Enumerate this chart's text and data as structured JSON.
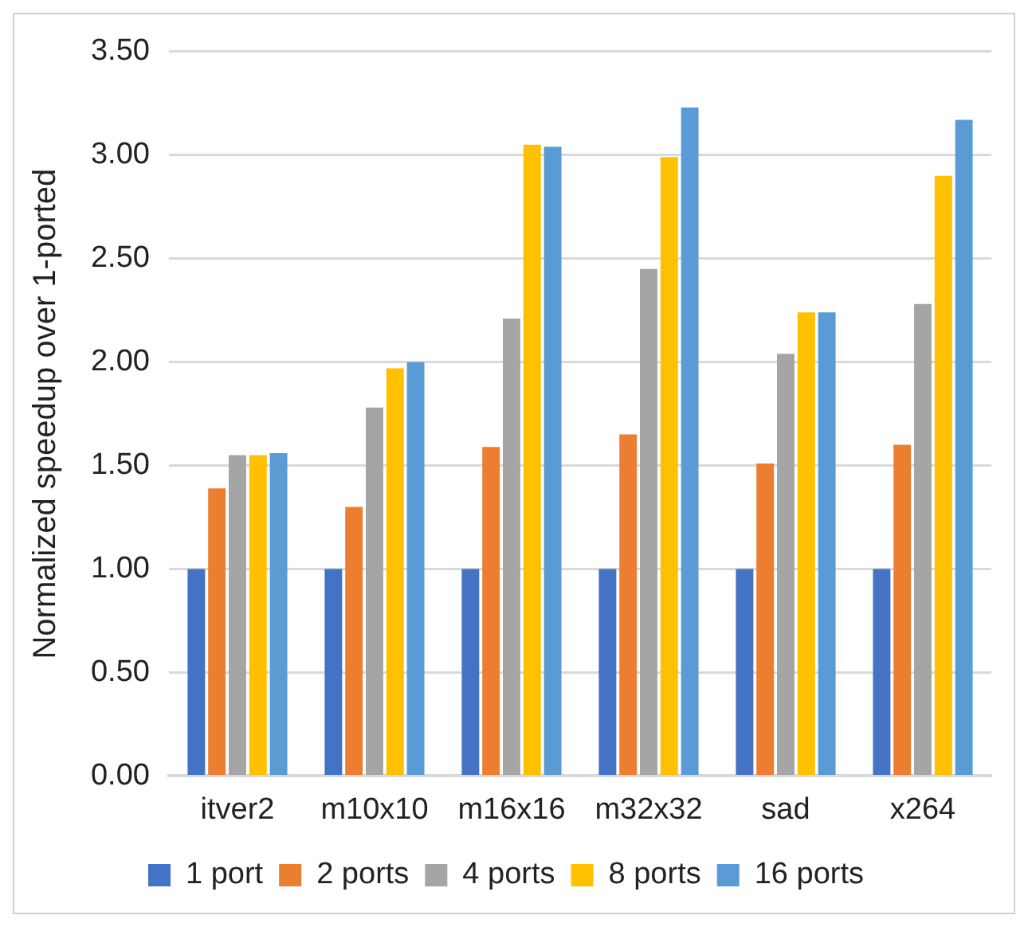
{
  "chart_data": {
    "type": "bar",
    "ylabel": "Normalized speedup over 1-ported",
    "categories": [
      "itver2",
      "m10x10",
      "m16x16",
      "m32x32",
      "sad",
      "x264"
    ],
    "series": [
      {
        "name": "1 port",
        "color": "#4472c4",
        "values": [
          1.0,
          1.0,
          1.0,
          1.0,
          1.0,
          1.0
        ]
      },
      {
        "name": "2 ports",
        "color": "#ed7d31",
        "values": [
          1.39,
          1.3,
          1.59,
          1.65,
          1.51,
          1.6
        ]
      },
      {
        "name": "4 ports",
        "color": "#a5a5a5",
        "values": [
          1.55,
          1.78,
          2.21,
          2.45,
          2.04,
          2.28
        ]
      },
      {
        "name": "8 ports",
        "color": "#ffc000",
        "values": [
          1.55,
          1.97,
          3.05,
          2.99,
          2.24,
          2.9
        ]
      },
      {
        "name": "16 ports",
        "color": "#5b9bd5",
        "values": [
          1.56,
          2.0,
          3.04,
          3.23,
          2.24,
          3.17
        ]
      }
    ],
    "ylim": [
      0,
      3.5
    ],
    "yticks": [
      {
        "value": 0,
        "label": "0.00"
      },
      {
        "value": 0.5,
        "label": "0.50"
      },
      {
        "value": 1,
        "label": "1.00"
      },
      {
        "value": 1.5,
        "label": "1.50"
      },
      {
        "value": 2,
        "label": "2.00"
      },
      {
        "value": 2.5,
        "label": "2.50"
      },
      {
        "value": 3,
        "label": "3.00"
      },
      {
        "value": 3.5,
        "label": "3.50"
      }
    ],
    "grid": "y",
    "legend": "bottom"
  }
}
